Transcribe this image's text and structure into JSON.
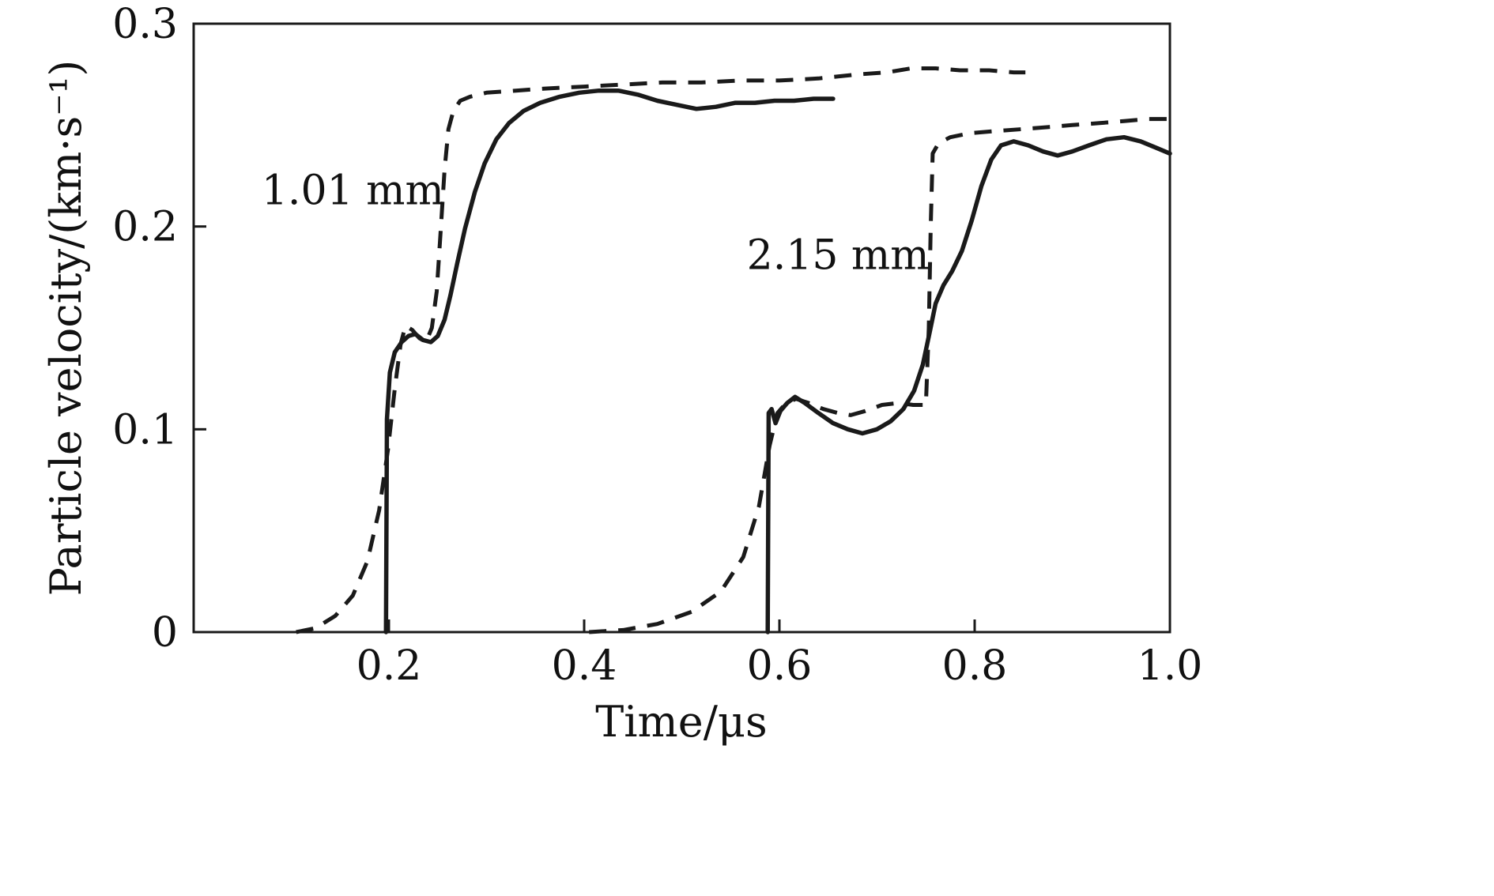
{
  "figure": {
    "background_color": "#ffffff",
    "line_color": "#1a1a1a"
  },
  "chart_data": {
    "type": "line",
    "title": "",
    "xlabel": "Time/μs",
    "ylabel": "Particle velocity/(km·s⁻¹)",
    "xlim": [
      0,
      1.0
    ],
    "ylim": [
      0,
      0.3
    ],
    "xticks": [
      0.2,
      0.4,
      0.6,
      0.8,
      1.0
    ],
    "xtick_labels": [
      "0.2",
      "0.4",
      "0.6",
      "0.8",
      "1.0"
    ],
    "yticks": [
      0,
      0.1,
      0.2,
      0.3
    ],
    "ytick_labels": [
      "0",
      "0.1",
      "0.2",
      "0.3"
    ],
    "grid": false,
    "legend_position": "none",
    "annotations": [
      {
        "text": "1.01 mm",
        "x": 0.163,
        "y": 0.218
      },
      {
        "text": "2.15 mm",
        "x": 0.66,
        "y": 0.186
      }
    ],
    "series": [
      {
        "id": "1-01mm-solid",
        "name": "1.01 mm — solid curve",
        "style": "solid",
        "color": "#1a1a1a",
        "width": 5.5,
        "points": [
          [
            0.197,
            0
          ],
          [
            0.198,
            0.105
          ],
          [
            0.201,
            0.128
          ],
          [
            0.206,
            0.138
          ],
          [
            0.213,
            0.143
          ],
          [
            0.22,
            0.146
          ],
          [
            0.227,
            0.147
          ],
          [
            0.235,
            0.144
          ],
          [
            0.243,
            0.143
          ],
          [
            0.25,
            0.146
          ],
          [
            0.257,
            0.154
          ],
          [
            0.263,
            0.166
          ],
          [
            0.27,
            0.182
          ],
          [
            0.278,
            0.199
          ],
          [
            0.288,
            0.217
          ],
          [
            0.298,
            0.231
          ],
          [
            0.31,
            0.243
          ],
          [
            0.323,
            0.251
          ],
          [
            0.338,
            0.257
          ],
          [
            0.355,
            0.261
          ],
          [
            0.375,
            0.264
          ],
          [
            0.395,
            0.266
          ],
          [
            0.415,
            0.267
          ],
          [
            0.435,
            0.267
          ],
          [
            0.455,
            0.265
          ],
          [
            0.475,
            0.262
          ],
          [
            0.495,
            0.26
          ],
          [
            0.515,
            0.258
          ],
          [
            0.535,
            0.259
          ],
          [
            0.555,
            0.261
          ],
          [
            0.575,
            0.261
          ],
          [
            0.595,
            0.262
          ],
          [
            0.615,
            0.262
          ],
          [
            0.635,
            0.263
          ],
          [
            0.655,
            0.263
          ]
        ]
      },
      {
        "id": "1-01mm-dashed",
        "name": "1.01 mm — dashed curve",
        "style": "dashed",
        "color": "#1a1a1a",
        "width": 5,
        "points": [
          [
            0.105,
            0
          ],
          [
            0.125,
            0.002
          ],
          [
            0.145,
            0.008
          ],
          [
            0.163,
            0.018
          ],
          [
            0.178,
            0.035
          ],
          [
            0.19,
            0.06
          ],
          [
            0.199,
            0.09
          ],
          [
            0.206,
            0.12
          ],
          [
            0.212,
            0.142
          ],
          [
            0.217,
            0.151
          ],
          [
            0.224,
            0.149
          ],
          [
            0.231,
            0.145
          ],
          [
            0.238,
            0.143
          ],
          [
            0.244,
            0.15
          ],
          [
            0.249,
            0.168
          ],
          [
            0.253,
            0.198
          ],
          [
            0.257,
            0.228
          ],
          [
            0.261,
            0.248
          ],
          [
            0.266,
            0.257
          ],
          [
            0.273,
            0.262
          ],
          [
            0.283,
            0.264
          ],
          [
            0.3,
            0.266
          ],
          [
            0.33,
            0.267
          ],
          [
            0.36,
            0.268
          ],
          [
            0.4,
            0.269
          ],
          [
            0.44,
            0.27
          ],
          [
            0.48,
            0.271
          ],
          [
            0.52,
            0.271
          ],
          [
            0.56,
            0.272
          ],
          [
            0.6,
            0.272
          ],
          [
            0.64,
            0.273
          ],
          [
            0.68,
            0.275
          ],
          [
            0.71,
            0.276
          ],
          [
            0.735,
            0.278
          ],
          [
            0.76,
            0.278
          ],
          [
            0.785,
            0.277
          ],
          [
            0.815,
            0.277
          ],
          [
            0.84,
            0.276
          ],
          [
            0.852,
            0.276
          ]
        ]
      },
      {
        "id": "2-15mm-solid",
        "name": "2.15 mm — solid curve",
        "style": "solid",
        "color": "#1a1a1a",
        "width": 5.5,
        "points": [
          [
            0.588,
            0
          ],
          [
            0.589,
            0.108
          ],
          [
            0.592,
            0.11
          ],
          [
            0.596,
            0.103
          ],
          [
            0.601,
            0.109
          ],
          [
            0.608,
            0.113
          ],
          [
            0.616,
            0.116
          ],
          [
            0.626,
            0.113
          ],
          [
            0.64,
            0.108
          ],
          [
            0.655,
            0.103
          ],
          [
            0.67,
            0.1
          ],
          [
            0.685,
            0.098
          ],
          [
            0.7,
            0.1
          ],
          [
            0.714,
            0.104
          ],
          [
            0.727,
            0.11
          ],
          [
            0.738,
            0.119
          ],
          [
            0.747,
            0.132
          ],
          [
            0.754,
            0.148
          ],
          [
            0.76,
            0.162
          ],
          [
            0.768,
            0.171
          ],
          [
            0.777,
            0.178
          ],
          [
            0.787,
            0.188
          ],
          [
            0.797,
            0.203
          ],
          [
            0.807,
            0.22
          ],
          [
            0.817,
            0.233
          ],
          [
            0.827,
            0.24
          ],
          [
            0.84,
            0.242
          ],
          [
            0.855,
            0.24
          ],
          [
            0.87,
            0.237
          ],
          [
            0.885,
            0.235
          ],
          [
            0.9,
            0.237
          ],
          [
            0.917,
            0.24
          ],
          [
            0.935,
            0.243
          ],
          [
            0.953,
            0.244
          ],
          [
            0.97,
            0.242
          ],
          [
            0.985,
            0.239
          ],
          [
            1.0,
            0.236
          ]
        ]
      },
      {
        "id": "2-15mm-dashed",
        "name": "2.15 mm — dashed curve",
        "style": "dashed",
        "color": "#1a1a1a",
        "width": 5,
        "points": [
          [
            0.405,
            0
          ],
          [
            0.44,
            0.001
          ],
          [
            0.475,
            0.004
          ],
          [
            0.51,
            0.01
          ],
          [
            0.54,
            0.02
          ],
          [
            0.563,
            0.037
          ],
          [
            0.579,
            0.062
          ],
          [
            0.59,
            0.092
          ],
          [
            0.598,
            0.108
          ],
          [
            0.607,
            0.113
          ],
          [
            0.617,
            0.115
          ],
          [
            0.63,
            0.113
          ],
          [
            0.645,
            0.11
          ],
          [
            0.66,
            0.108
          ],
          [
            0.673,
            0.107
          ],
          [
            0.688,
            0.109
          ],
          [
            0.705,
            0.112
          ],
          [
            0.722,
            0.113
          ],
          [
            0.737,
            0.112
          ],
          [
            0.75,
            0.112
          ],
          [
            0.753,
            0.15
          ],
          [
            0.755,
            0.2
          ],
          [
            0.757,
            0.236
          ],
          [
            0.763,
            0.241
          ],
          [
            0.775,
            0.244
          ],
          [
            0.795,
            0.246
          ],
          [
            0.82,
            0.247
          ],
          [
            0.848,
            0.248
          ],
          [
            0.875,
            0.249
          ],
          [
            0.9,
            0.25
          ],
          [
            0.928,
            0.251
          ],
          [
            0.953,
            0.252
          ],
          [
            0.978,
            0.253
          ],
          [
            1.0,
            0.253
          ]
        ]
      }
    ]
  }
}
